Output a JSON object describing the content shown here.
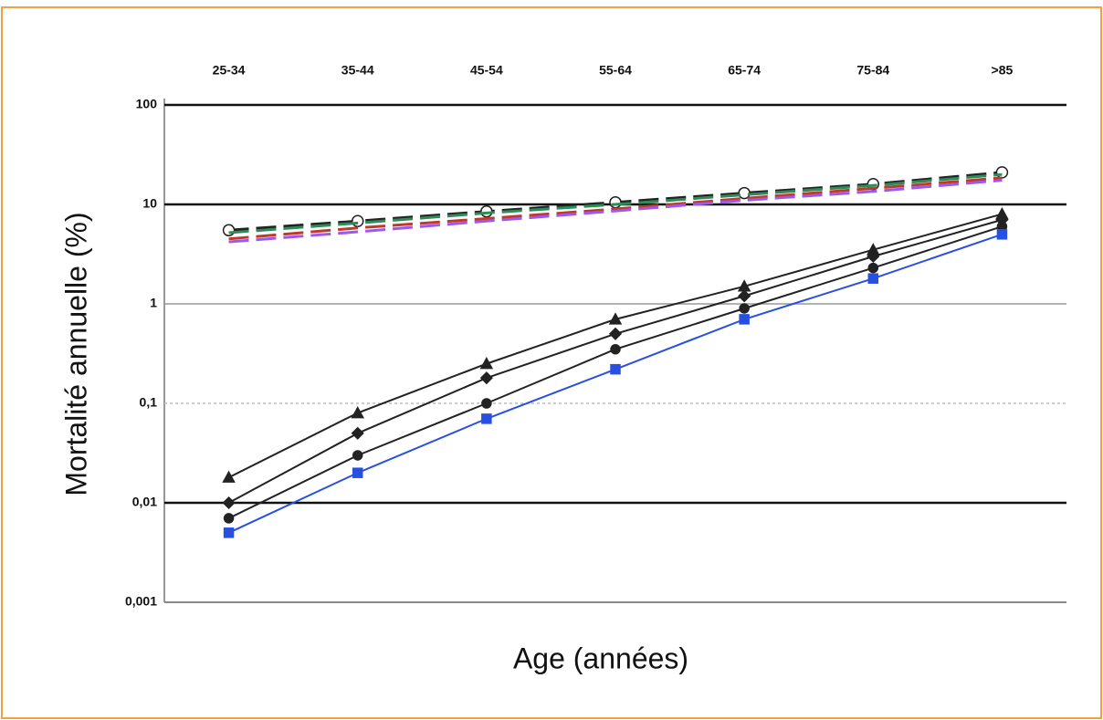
{
  "chart_data": {
    "type": "line",
    "log_scale": true,
    "grid": true,
    "categories": [
      "25-34",
      "35-44",
      "45-54",
      "55-64",
      "65-74",
      "75-84",
      ">85"
    ],
    "ylabel": "Mortalité annuelle (%)",
    "xlabel": "Age (années)",
    "ylim": [
      0.001,
      100
    ],
    "yticks": [
      {
        "value": 0.001,
        "label": "0,001"
      },
      {
        "value": 0.01,
        "label": "0,01"
      },
      {
        "value": 0.1,
        "label": "0,1"
      },
      1,
      10,
      100
    ],
    "series": [
      {
        "color": "#222222",
        "dashed": true,
        "marker": "open-circle",
        "values": [
          5.5,
          6.8,
          8.5,
          10.5,
          13,
          16,
          21
        ]
      },
      {
        "color": "#2e8b57",
        "dashed": true,
        "marker": "none",
        "values": [
          5.2,
          6.5,
          8.2,
          10,
          12.5,
          15.5,
          20
        ]
      },
      {
        "color": "#c0392b",
        "dashed": true,
        "marker": "none",
        "values": [
          4.5,
          5.8,
          7.2,
          9,
          11.5,
          14.5,
          18.5
        ]
      },
      {
        "color": "#9b59f0",
        "dashed": true,
        "marker": "none",
        "values": [
          4.2,
          5.3,
          6.8,
          8.6,
          11,
          13.5,
          17.5
        ]
      },
      {
        "color": "#222222",
        "dashed": false,
        "marker": "triangle",
        "values": [
          0.018,
          0.08,
          0.25,
          0.7,
          1.5,
          3.5,
          8
        ]
      },
      {
        "color": "#222222",
        "dashed": false,
        "marker": "diamond",
        "values": [
          0.01,
          0.05,
          0.18,
          0.5,
          1.2,
          3,
          7
        ]
      },
      {
        "color": "#222222",
        "dashed": false,
        "marker": "circle",
        "values": [
          0.007,
          0.03,
          0.1,
          0.35,
          0.9,
          2.3,
          6
        ]
      },
      {
        "color": "#2850e0",
        "dashed": false,
        "marker": "square",
        "values": [
          0.005,
          0.02,
          0.07,
          0.22,
          0.7,
          1.8,
          5
        ]
      }
    ]
  }
}
